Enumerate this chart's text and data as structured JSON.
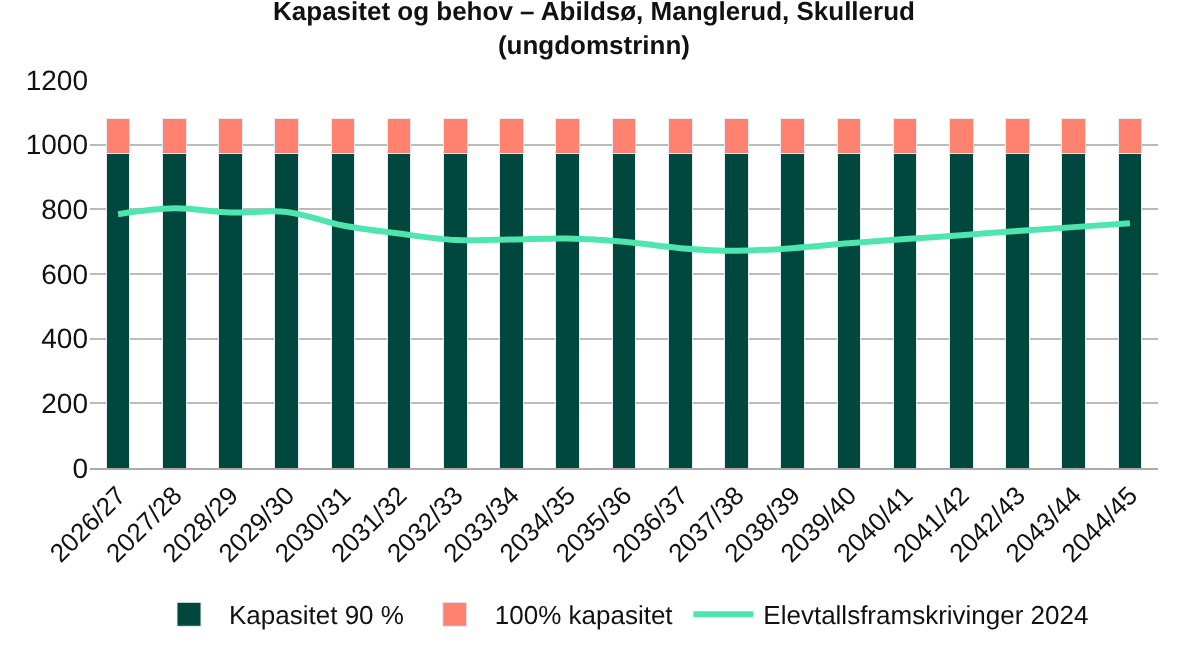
{
  "chart_data": {
    "type": "bar",
    "stacked": true,
    "title": "Kapasitet og behov – Abildsø, Manglerud, Skullerud\n(ungdomstrinn)",
    "categories": [
      "2026/27",
      "2027/28",
      "2028/29",
      "2029/30",
      "2030/31",
      "2031/32",
      "2032/33",
      "2033/34",
      "2034/35",
      "2035/36",
      "2036/37",
      "2037/38",
      "2038/39",
      "2039/40",
      "2040/41",
      "2041/42",
      "2042/43",
      "2043/44",
      "2044/45"
    ],
    "series": [
      {
        "name": "Kapasitet 90 %",
        "color": "#00483d",
        "values": [
          972,
          972,
          972,
          972,
          972,
          972,
          972,
          972,
          972,
          972,
          972,
          972,
          972,
          972,
          972,
          972,
          972,
          972,
          972
        ]
      },
      {
        "name": "100% kapasitet",
        "color": "#ff8271",
        "values": [
          108,
          108,
          108,
          108,
          108,
          108,
          108,
          108,
          108,
          108,
          108,
          108,
          108,
          108,
          108,
          108,
          108,
          108,
          108
        ]
      },
      {
        "name": "Elevtallsframskrivinger 2024",
        "type": "line",
        "color": "#4ee6ae",
        "values": [
          785,
          803,
          790,
          792,
          750,
          725,
          705,
          707,
          710,
          700,
          680,
          672,
          680,
          695,
          708,
          720,
          733,
          745,
          757
        ]
      }
    ],
    "ylim": [
      0,
      1200
    ],
    "yticks": [
      0,
      200,
      400,
      600,
      800,
      1000,
      1200
    ],
    "grid": "y",
    "legend": "bottom",
    "marker": "none"
  }
}
